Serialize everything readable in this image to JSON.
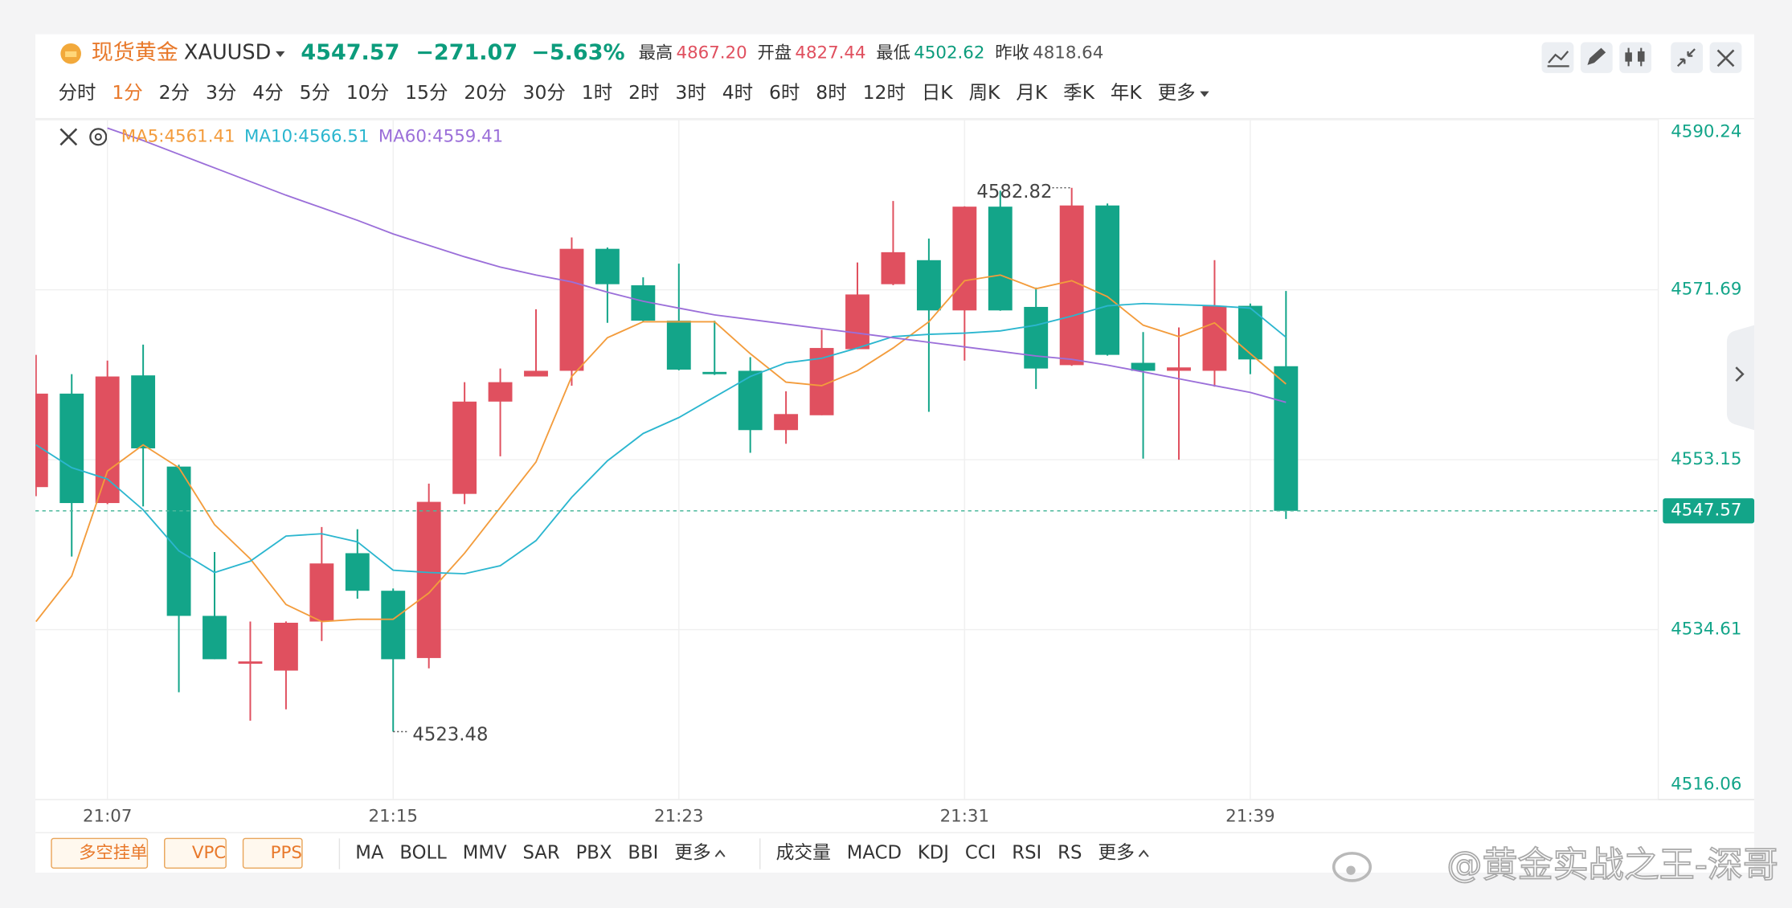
{
  "header": {
    "symbol_name": "现货黄金",
    "symbol_code": "XAUUSD",
    "price": "4547.57",
    "change": "−271.07",
    "change_percent": "−5.63%",
    "price_color": "#0c9c7c",
    "stats": [
      {
        "label": "最高",
        "value": "4867.20",
        "color": "#e0505f"
      },
      {
        "label": "开盘",
        "value": "4827.44",
        "color": "#e0505f"
      },
      {
        "label": "最低",
        "value": "4502.62",
        "color": "#0c9c7c"
      },
      {
        "label": "昨收",
        "value": "4818.64",
        "color": "#555555"
      }
    ]
  },
  "timeframes": {
    "items": [
      "分时",
      "1分",
      "2分",
      "3分",
      "4分",
      "5分",
      "10分",
      "15分",
      "20分",
      "30分",
      "1时",
      "2时",
      "3时",
      "4时",
      "6时",
      "8时",
      "12时",
      "日K",
      "周K",
      "月K",
      "季K",
      "年K",
      "更多"
    ],
    "active_index": 1
  },
  "toolbar": {
    "buttons": [
      "多空挂单",
      "VPC",
      "PPS"
    ],
    "main_indicators": [
      "MA",
      "BOLL",
      "MMV",
      "SAR",
      "PBX",
      "BBI",
      "更多"
    ],
    "sub_indicators": [
      "成交量",
      "MACD",
      "KDJ",
      "CCI",
      "RSI",
      "RS",
      "更多"
    ]
  },
  "watermark": "@黄金实战之王-深哥",
  "chart_data": {
    "type": "candlestick",
    "categories": [
      null,
      null,
      "21:07",
      null,
      null,
      null,
      null,
      null,
      null,
      null,
      "21:15",
      null,
      null,
      null,
      null,
      null,
      null,
      null,
      "21:23",
      null,
      null,
      null,
      null,
      null,
      null,
      null,
      "21:31",
      null,
      null,
      null,
      null,
      null,
      null,
      null,
      "21:39",
      null
    ],
    "open": [
      4550.16,
      4560.36,
      4548.42,
      4562.35,
      4552.4,
      4536.11,
      4530.89,
      4530.14,
      4535.49,
      4542.95,
      4538.85,
      4531.51,
      4549.42,
      4559.49,
      4562.23,
      4562.85,
      4576.16,
      4572.18,
      4568.32,
      4562.73,
      4562.85,
      4556.38,
      4558.0,
      4565.21,
      4572.3,
      4574.92,
      4569.44,
      4580.76,
      4569.82,
      4563.47,
      4580.89,
      4563.72,
      4562.85,
      4562.85,
      4569.94,
      4563.35
    ],
    "high": [
      4564.59,
      4562.48,
      4563.97,
      4565.71,
      4552.6,
      4543.08,
      4535.49,
      4535.5,
      4545.81,
      4545.56,
      4539.1,
      4550.54,
      4561.61,
      4563.1,
      4569.57,
      4577.4,
      4576.3,
      4573.05,
      4574.54,
      4568.32,
      4564.34,
      4560.61,
      4567.33,
      4574.67,
      4581.38,
      4577.28,
      4580.8,
      4582.5,
      4571.93,
      4582.82,
      4581.1,
      4567.08,
      4567.58,
      4574.92,
      4570.19,
      4571.56
    ],
    "low": [
      4549.17,
      4542.58,
      4548.3,
      4548.05,
      4527.78,
      4531.38,
      4524.67,
      4525.91,
      4533.37,
      4537.98,
      4523.48,
      4530.39,
      4548.3,
      4553.52,
      4562.23,
      4561.23,
      4568.08,
      4568.2,
      4562.9,
      4562.4,
      4553.9,
      4554.89,
      4558.0,
      4565.2,
      4572.2,
      4558.37,
      4563.97,
      4569.4,
      4560.86,
      4563.4,
      4564.5,
      4553.27,
      4553.15,
      4561.11,
      4562.48,
      4546.68
    ],
    "close": [
      4560.36,
      4548.42,
      4562.23,
      4554.39,
      4536.11,
      4531.38,
      4531.14,
      4535.36,
      4541.83,
      4538.85,
      4531.38,
      4548.55,
      4559.49,
      4561.61,
      4562.85,
      4576.16,
      4572.3,
      4568.32,
      4562.98,
      4562.48,
      4556.38,
      4558.13,
      4565.34,
      4571.18,
      4575.79,
      4569.44,
      4580.76,
      4569.44,
      4563.1,
      4580.89,
      4564.59,
      4562.85,
      4563.22,
      4569.94,
      4564.09,
      4547.57
    ],
    "up_color": "#e0505f",
    "down_color": "#13a589",
    "series": [
      {
        "name": "MA5:4561.41",
        "color": "#f39c3c",
        "values": [
          4535.49,
          4540.46,
          4551.91,
          4554.77,
          4552.28,
          4546.06,
          4542.33,
          4537.35,
          4535.49,
          4535.74,
          4535.74,
          4538.6,
          4542.95,
          4547.93,
          4552.9,
          4562.23,
          4566.46,
          4568.2,
          4568.2,
          4568.2,
          4564.72,
          4561.61,
          4561.23,
          4562.85,
          4565.34,
          4568.2,
          4572.68,
          4573.3,
          4571.81,
          4572.68,
          4570.94,
          4567.83,
          4566.58,
          4568.08,
          4564.72,
          4561.41
        ]
      },
      {
        "name": "MA10:4566.51",
        "color": "#2bb6cf",
        "values": [
          4554.77,
          4552.28,
          4551.04,
          4547.68,
          4543.2,
          4540.84,
          4542.08,
          4544.82,
          4545.07,
          4544.19,
          4541.09,
          4540.84,
          4540.71,
          4541.58,
          4544.32,
          4549.05,
          4553.03,
          4556.01,
          4557.75,
          4559.99,
          4562.23,
          4563.72,
          4564.22,
          4565.34,
          4566.58,
          4566.83,
          4566.96,
          4567.2,
          4567.83,
          4568.82,
          4569.94,
          4570.19,
          4570.07,
          4569.94,
          4569.69,
          4566.51
        ]
      },
      {
        "name": "MA60:4559.41",
        "color": "#9b6fd9",
        "values": [
          null,
          null,
          4589.34,
          4587.98,
          4586.48,
          4584.99,
          4583.5,
          4582.01,
          4580.64,
          4579.27,
          4577.78,
          4576.53,
          4575.29,
          4574.17,
          4573.3,
          4572.55,
          4571.43,
          4570.44,
          4569.69,
          4568.95,
          4568.45,
          4567.95,
          4567.45,
          4566.96,
          4566.46,
          4565.96,
          4565.46,
          4564.97,
          4564.47,
          4564.1,
          4563.47,
          4562.73,
          4561.98,
          4561.23,
          4560.49,
          4559.41
        ]
      }
    ],
    "ylim": [
      4516.06,
      4590.24
    ],
    "yticks": [
      4516.06,
      4534.61,
      4553.15,
      4571.69,
      4590.24
    ],
    "grid": true,
    "current_price": 4547.57,
    "high_marker": 4582.82,
    "low_marker": 4523.48
  }
}
